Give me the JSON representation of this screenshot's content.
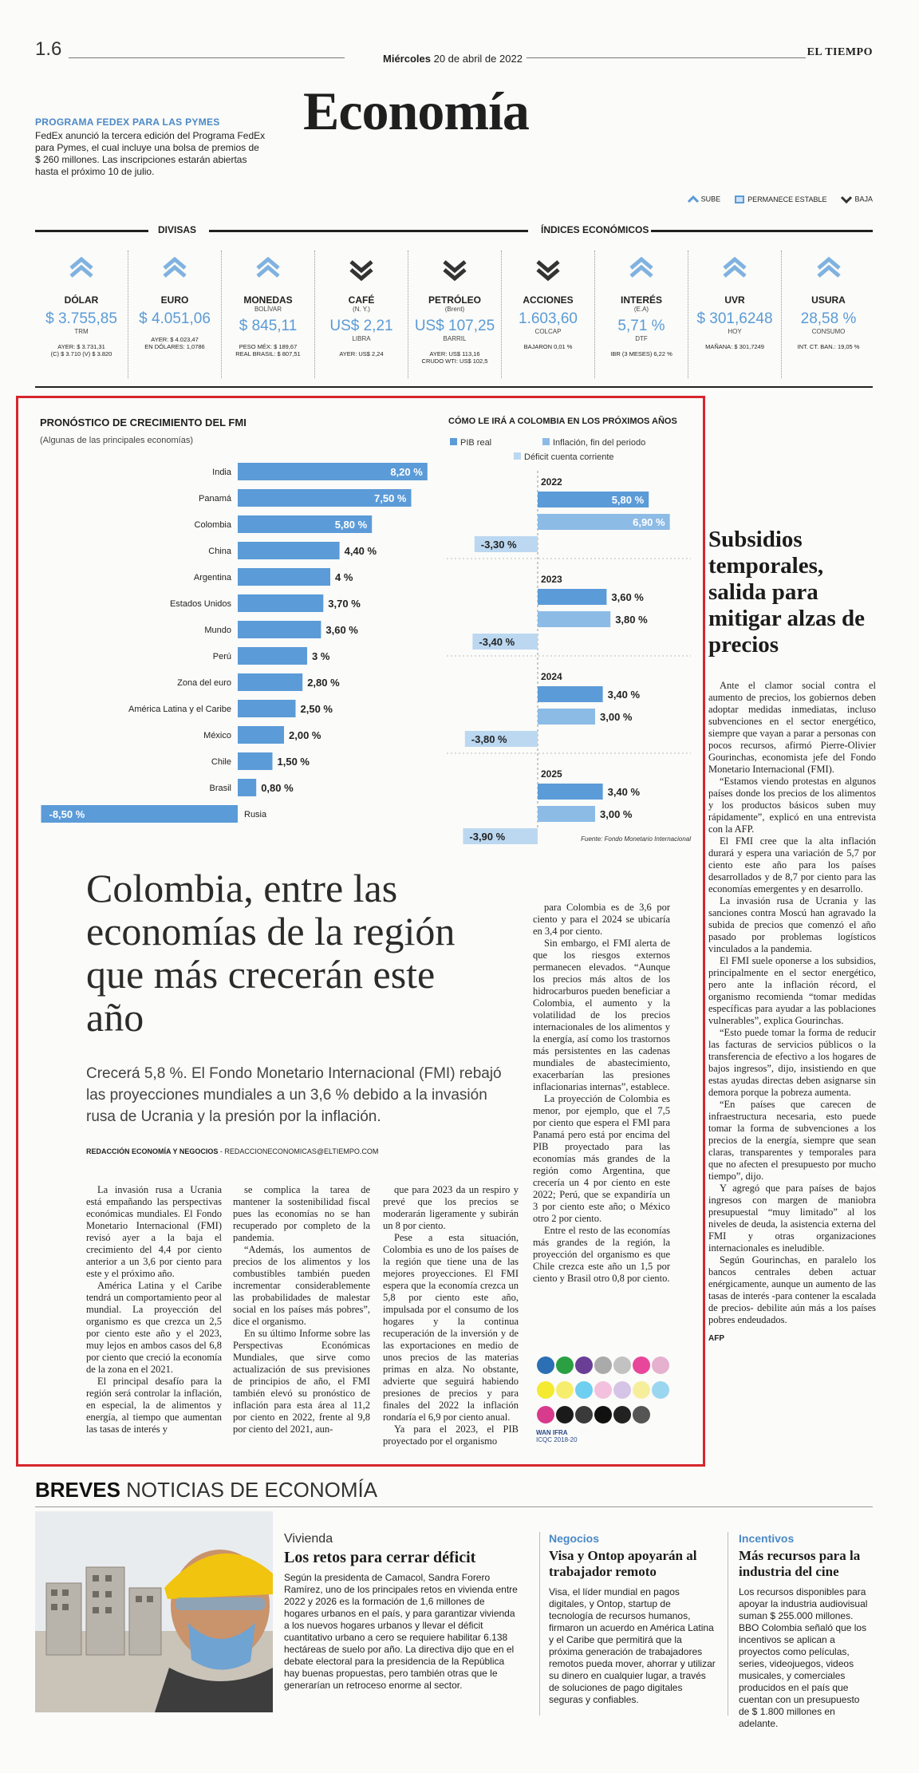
{
  "header": {
    "page_number": "1.6",
    "date_day": "Miércoles",
    "date_rest": "20 de abril de 2022",
    "brand": "EL TIEMPO",
    "section": "Economía"
  },
  "fedex": {
    "kicker": "PROGRAMA FEDEX PARA LAS PYMES",
    "text": "FedEx anunció la tercera edición del Programa FedEx para Pymes, el cual incluye una bolsa de premios de $ 260 millones. Las inscripciones estarán abiertas hasta el próximo 10 de julio."
  },
  "legend": {
    "up": "SUBE",
    "stable": "PERMANECE ESTABLE",
    "down": "BAJA"
  },
  "indicators": {
    "divisas_label": "DIVISAS",
    "indices_label": "ÍNDICES ECONÓMICOS",
    "items": [
      {
        "name": "DÓLAR",
        "sub": "",
        "value": "$ 3.755,85",
        "unit": "TRM",
        "foot": "AYER: $ 3.731,31\n(C) $ 3.710 (V) $ 3.820",
        "trend": "up"
      },
      {
        "name": "EURO",
        "sub": "",
        "value": "$ 4.051,06",
        "unit": "",
        "foot": "AYER: $ 4.023,47\nEN DÓLARES: 1,0786",
        "trend": "up"
      },
      {
        "name": "MONEDAS",
        "sub": "BOLÍVAR",
        "value": "$ 845,11",
        "unit": "",
        "foot": "PESO MÉX: $ 189,67\nREAL BRASIL: $ 807,51",
        "trend": "up"
      },
      {
        "name": "CAFÉ",
        "sub": "(N. Y.)",
        "value": "US$ 2,21",
        "unit": "LIBRA",
        "foot": "AYER: US$ 2,24",
        "trend": "down"
      },
      {
        "name": "PETRÓLEO",
        "sub": "(Brent)",
        "value": "US$ 107,25",
        "unit": "BARRIL",
        "foot": "AYER: US$ 113,16\nCRUDO WTI: US$ 102,5",
        "trend": "down"
      },
      {
        "name": "ACCIONES",
        "sub": "",
        "value": "1.603,60",
        "unit": "COLCAP",
        "foot": "BAJARON 0,01 %",
        "trend": "down"
      },
      {
        "name": "INTERÉS",
        "sub": "(E.A)",
        "value": "5,71 %",
        "unit": "DTF",
        "foot": "IBR (3 MESES) 6,22 %",
        "trend": "up"
      },
      {
        "name": "UVR",
        "sub": "",
        "value": "$ 301,6248",
        "unit": "HOY",
        "foot": "MAÑANA: $ 301,7249",
        "trend": "up"
      },
      {
        "name": "USURA",
        "sub": "",
        "value": "28,58 %",
        "unit": "CONSUMO",
        "foot": "INT. CT. BAN.: 19,05 %",
        "trend": "up"
      }
    ]
  },
  "chart_data": [
    {
      "type": "bar",
      "title": "PRONÓSTICO DE CRECIMIENTO DEL FMI",
      "subtitle": "(Algunas de las principales economías)",
      "categories": [
        "India",
        "Panamá",
        "Colombia",
        "China",
        "Argentina",
        "Estados Unidos",
        "Mundo",
        "Perú",
        "Zona del euro",
        "América Latina y el Caribe",
        "México",
        "Chile",
        "Brasil",
        "Rusia"
      ],
      "values": [
        8.2,
        7.5,
        5.8,
        4.4,
        4,
        3.7,
        3.6,
        3,
        2.8,
        2.5,
        2.0,
        1.5,
        0.8,
        -8.5
      ],
      "labels": [
        "8,20 %",
        "7,50 %",
        "5,80 %",
        "4,40 %",
        "4 %",
        "3,70 %",
        "3,60 %",
        "3 %",
        "2,80 %",
        "2,50 %",
        "2,00 %",
        "1,50 %",
        "0,80 %",
        "-8,50 %"
      ],
      "color": "#5b9bd8"
    },
    {
      "type": "bar",
      "title": "CÓMO LE IRÁ A COLOMBIA EN LOS PRÓXIMOS AÑOS",
      "legend": [
        "PIB real",
        "Inflación, fin del periodo",
        "Déficit cuenta corriente"
      ],
      "groups": [
        {
          "year": "2022",
          "pib": 5.8,
          "inflacion": 6.9,
          "deficit": -3.3,
          "labels": [
            "5,80 %",
            "6,90 %",
            "-3,30 %"
          ]
        },
        {
          "year": "2023",
          "pib": 3.6,
          "inflacion": 3.8,
          "deficit": -3.4,
          "labels": [
            "3,60 %",
            "3,80 %",
            "-3,40 %"
          ]
        },
        {
          "year": "2024",
          "pib": 3.4,
          "inflacion": 3.0,
          "deficit": -3.8,
          "labels": [
            "3,40 %",
            "3,00 %",
            "-3,80 %"
          ]
        },
        {
          "year": "2025",
          "pib": 3.4,
          "inflacion": 3.0,
          "deficit": -3.9,
          "labels": [
            "3,40 %",
            "3,00 %",
            "-3,90 %"
          ]
        }
      ],
      "colors": {
        "pib": "#5b9bd8",
        "inflacion": "#8cbbe6",
        "deficit": "#bcd8f1"
      },
      "source": "Fuente: Fondo Monetario Internacional"
    }
  ],
  "article": {
    "headline": "Colombia, entre las economías de la región que más crecerán este año",
    "lede": "Crecerá 5,8 %. El Fondo Monetario Internacional (FMI) rebajó las proyecciones mundiales a un 3,6 % debido a la invasión rusa de Ucrania y la presión por la inflación.",
    "byline_bold": "REDACCIÓN ECONOMÍA Y NEGOCIOS",
    "byline_rest": " - REDACCIONECONOMICAS@ELTIEMPO.COM",
    "col1": [
      "La invasión rusa a Ucrania está empañando las perspectivas económicas mundiales. El Fondo Monetario Internacional (FMI) revisó ayer a la baja el crecimiento del 4,4 por ciento anterior a un 3,6 por ciento para este y el próximo año.",
      "América Latina y el Caribe tendrá un comportamiento peor al mundial. La proyección del organismo es que crezca un 2,5 por ciento este año y el 2023, muy lejos en ambos casos del 6,8 por ciento que creció la economía de la zona en el 2021.",
      "El principal desafío para la región será controlar la inflación, en especial, la de alimentos y energía, al tiempo que aumentan las tasas de interés y"
    ],
    "col2": [
      "se complica la tarea de mantener la sostenibilidad fiscal pues las economías no se han recuperado por completo de la pandemia.",
      "“Además, los aumentos de precios de los alimentos y los combustibles también pueden incrementar considerablemente las probabilidades de malestar social en los países más pobres”, dice el organismo.",
      "En su último Informe sobre las Perspectivas Económicas Mundiales, que sirve como actualización de sus previsiones de principios de año, el FMI también elevó su pronóstico de inflación para esta área al 11,2 por ciento en 2022, frente al 9,8 por ciento del 2021, aun-"
    ],
    "col3": [
      "que para 2023 da un respiro y prevé que los precios se moderarán ligeramente y subirán un 8 por ciento.",
      "Pese a esta situación, Colombia es uno de los países de la región que tiene una de las mejores proyecciones. El FMI espera que la economía crezca un 5,8 por ciento este año, impulsada por el consumo de los hogares y la continua recuperación de la inversión y de las exportaciones en medio de unos precios de las materias primas en alza. No obstante, advierte que seguirá habiendo presiones de precios y para finales del 2022 la inflación rondaría el 6,9 por ciento anual.",
      "Ya para el 2023, el PIB proyectado por el organismo"
    ],
    "col4": [
      "para Colombia es de 3,6 por ciento y para el 2024 se ubicaría en 3,4 por ciento.",
      "Sin embargo, el FMI alerta de que los riesgos externos permanecen elevados. “Aunque los precios más altos de los hidrocarburos pueden beneficiar a Colombia, el aumento y la volatilidad de los precios internacionales de los alimentos y la energía, así como los trastornos más persistentes en las cadenas mundiales de abastecimiento, exacerbarían las presiones inflacionarias internas”, establece.",
      "La proyección de Colombia es menor, por ejemplo, que el 7,5 por ciento que espera el FMI para Panamá pero está por encima del PIB proyectado para las economías más grandes de la región como Argentina, que crecería un 4 por ciento en este 2022; Perú, que se expandiría un 3 por ciento este año; o México otro 2 por ciento.",
      "Entre el resto de las economías más grandes de la región, la proyección del organismo es que Chile crezca este año un 1,5 por ciento y Brasil otro 0,8 por ciento."
    ]
  },
  "sidebar": {
    "headline": "Subsidios temporales, salida para mitigar alzas de precios",
    "paragraphs": [
      "Ante el clamor social contra el aumento de precios, los gobiernos deben adoptar medidas inmediatas, incluso subvenciones en el sector energético, siempre que vayan a parar a personas con pocos recursos, afirmó Pierre-Olivier Gourinchas, economista jefe del Fondo Monetario Internacional (FMI).",
      "“Estamos viendo protestas en algunos países donde los precios de los alimentos y los productos básicos suben muy rápidamente”, explicó en una entrevista con la AFP.",
      "El FMI cree que la alta inflación durará y espera una variación de 5,7 por ciento este año para los países desarrollados y de 8,7 por ciento para las economías emergentes y en desarrollo.",
      "La invasión rusa de Ucrania y las sanciones contra Moscú han agravado la subida de precios que comenzó el año pasado por problemas logísticos vinculados a la pandemia.",
      "El FMI suele oponerse a los subsidios, principalmente en el sector energético, pero ante la inflación récord, el organismo recomienda “tomar medidas específicas para ayudar a las poblaciones vulnerables”, explica Gourinchas.",
      "“Esto puede tomar la forma de reducir las facturas de servicios públicos o la transferencia de efectivo a los hogares de bajos ingresos”, dijo, insistiendo en que estas ayudas directas deben asignarse sin demora porque la pobreza aumenta.",
      "“En países que carecen de infraestructura necesaria, esto puede tomar la forma de subvenciones a los precios de la energía, siempre que sean claras, transparentes y temporales para que no afecten el presupuesto por mucho tiempo”, dijo.",
      "Y agregó que para países de bajos ingresos con margen de maniobra presupuestal “muy limitado” al los niveles de deuda, la asistencia externa del FMI y otras organizaciones internacionales es ineludible.",
      "Según Gourinchas, en paralelo los bancos centrales deben actuar enérgicamente, aunque un aumento de las tasas de interés -para contener la escalada de precios- debilite aún más a los países pobres endeudados."
    ],
    "credit": "AFP"
  },
  "swatch": {
    "logo_text": "WAN IFRA",
    "sub": "ICQC 2018-20",
    "colors": [
      "#2c6fb5",
      "#2aa043",
      "#6b3e96",
      "#aaaaaa",
      "#c2c2c2",
      "#e8469b",
      "#e6b0cf",
      "#f4ea30",
      "#f6ed6c",
      "#6ecff0",
      "#f3c1dd",
      "#d6c4e6",
      "#f6ee9a",
      "#9bd6f0",
      "#d83a8c",
      "#1a1a1a",
      "#3a3a3a",
      "#111111",
      "#222222",
      "#555555"
    ]
  },
  "breves": {
    "label_bold": "BREVES",
    "label_rest": " NOTICIAS DE ECONOMÍA",
    "items": [
      {
        "category": "Vivienda",
        "title": "Los retos para cerrar déficit",
        "text": "Según la presidenta de Camacol, Sandra Forero Ramírez, uno de los principales retos en vivienda entre 2022 y 2026 es la formación de 1,6 millones de hogares urbanos en el país, y para garantizar vivienda a los nuevos hogares urbanos y llevar el déficit cuantitativo urbano a cero se requiere habilitar 6.138 hectáreas de suelo por año. La directiva dijo que en el debate electoral para la presidencia de la República hay buenas propuestas, pero también otras que le generarían un retroceso enorme al sector."
      },
      {
        "category": "Negocios",
        "title": "Visa y Ontop apoyarán al trabajador remoto",
        "text": "Visa, el líder mundial en pagos digitales, y Ontop, startup de tecnología de recursos humanos, firmaron un acuerdo en América Latina y el Caribe que permitirá que la próxima generación de trabajadores remotos pueda mover, ahorrar y utilizar su dinero en cualquier lugar, a través de soluciones de pago digitales seguras y confiables."
      },
      {
        "category": "Incentivos",
        "title": "Más recursos para la industria del cine",
        "text": "Los recursos disponibles para apoyar la industria audiovisual suman $ 255.000 millones. BBO Colombia señaló que los incentivos se aplican a proyectos como películas, series, videojuegos, videos musicales, y comerciales producidos en el país que cuentan con un presupuesto de $ 1.800 millones en adelante."
      }
    ]
  }
}
